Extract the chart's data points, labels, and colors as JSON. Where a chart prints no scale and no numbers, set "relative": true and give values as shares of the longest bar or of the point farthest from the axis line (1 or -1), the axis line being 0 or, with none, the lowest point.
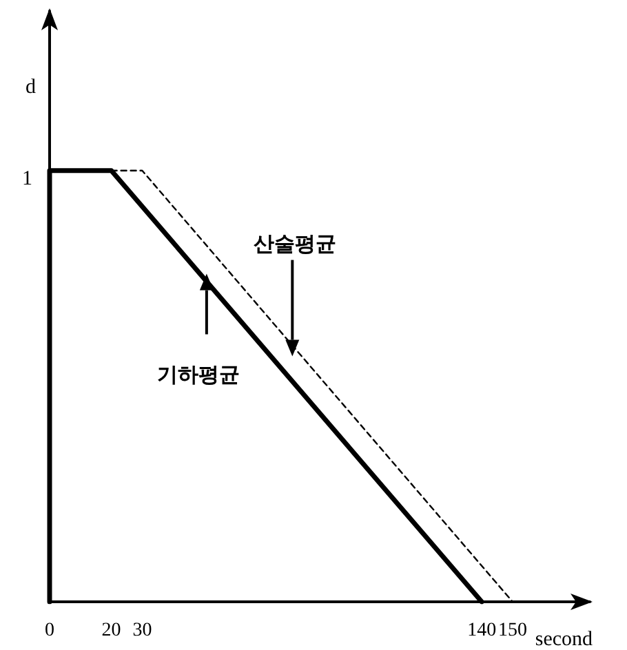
{
  "chart_data": {
    "type": "line",
    "xlabel": "second",
    "ylabel": "d",
    "relative": true,
    "series": [
      {
        "name": "기하평균",
        "color": "#000000",
        "line_style": "solid",
        "x": [
          0,
          0,
          20,
          140
        ],
        "values": [
          0,
          1,
          1,
          0
        ]
      },
      {
        "name": "산술평균",
        "color": "#000000",
        "line_style": "dashed",
        "x": [
          20,
          30,
          150
        ],
        "values": [
          1,
          1,
          0
        ]
      }
    ],
    "xlim": [
      0,
      175
    ],
    "xticks": [
      0,
      20,
      30,
      140,
      150
    ],
    "annotations": [
      {
        "text": "1",
        "x": 0,
        "y": 1
      }
    ],
    "marker": "none"
  }
}
